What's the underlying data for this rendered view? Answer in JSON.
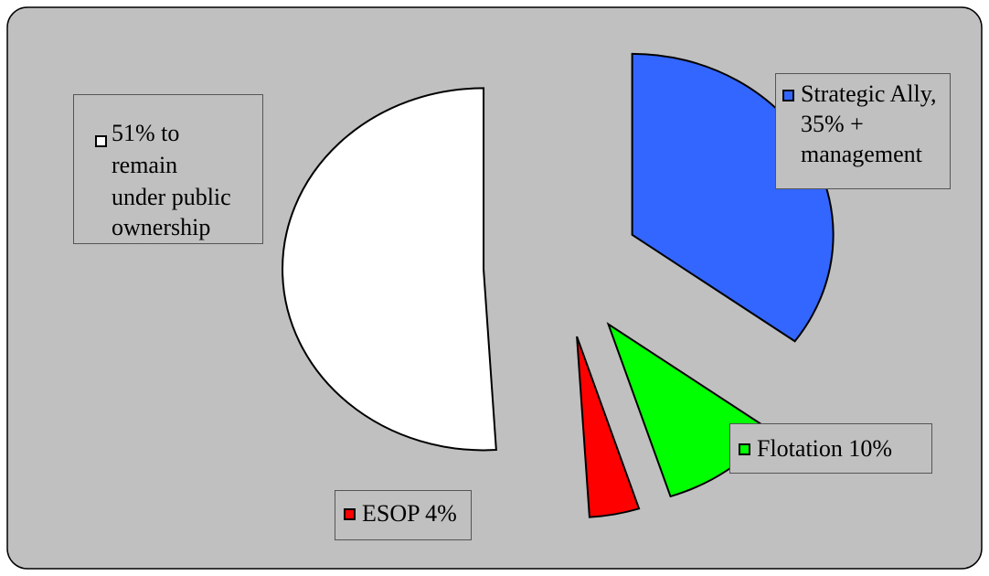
{
  "chart_data": {
    "type": "pie",
    "exploded": true,
    "background": "#c0c0c0",
    "slices": [
      {
        "label": "Strategic Ally, 35% + management",
        "legend_lines": [
          "Strategic Ally,",
          "35% +",
          "management"
        ],
        "value": 35,
        "color": "#3366ff"
      },
      {
        "label": "Flotation 10%",
        "legend_lines": [
          "Flotation 10%"
        ],
        "value": 10,
        "color": "#00ff00"
      },
      {
        "label": "ESOP 4%",
        "legend_lines": [
          "ESOP 4%"
        ],
        "value": 4,
        "color": "#ff0000"
      },
      {
        "label": "51% to remain under public ownership",
        "legend_lines": [
          "51% to",
          "remain",
          "under public",
          "ownership"
        ],
        "value": 51,
        "color": "#ffffff"
      }
    ]
  }
}
